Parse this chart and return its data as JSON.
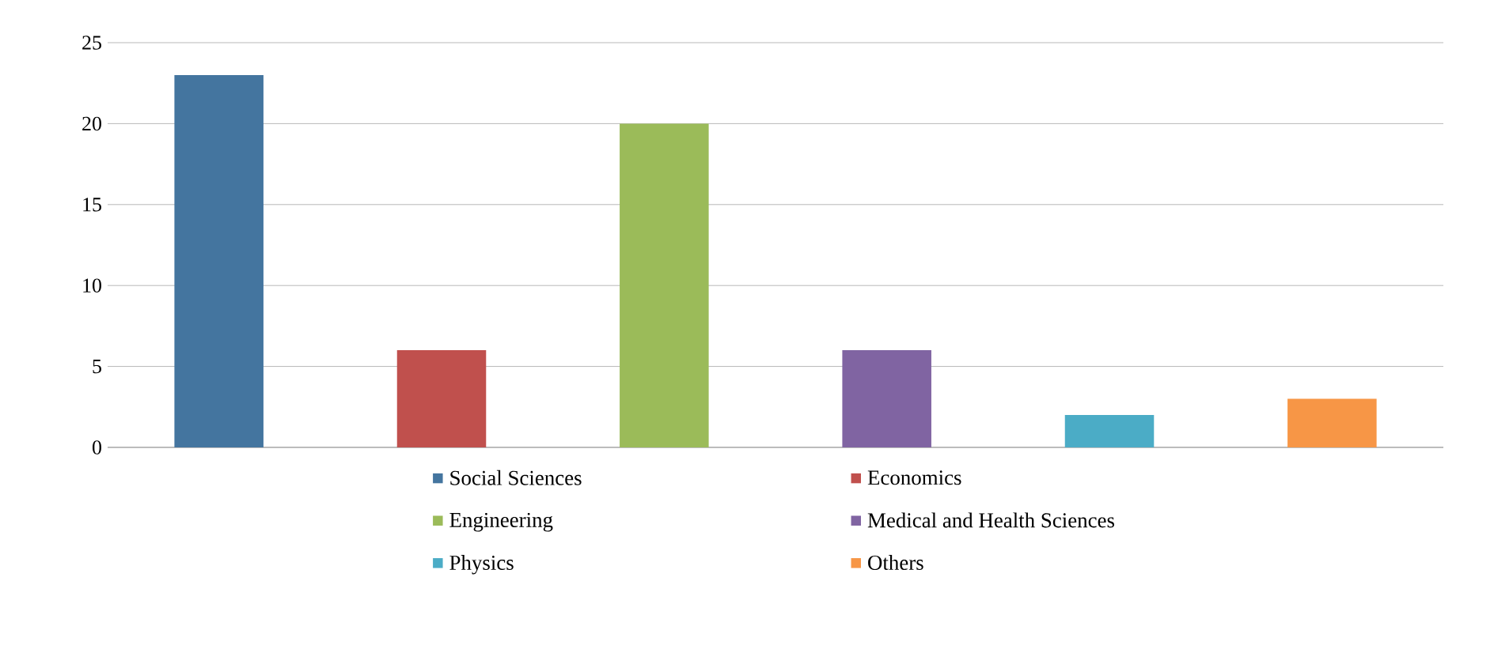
{
  "chart_data": {
    "type": "bar",
    "categories": [
      null,
      null,
      null,
      null,
      null,
      null
    ],
    "series": [
      {
        "name": "Social Sciences",
        "color": "#44759f",
        "values": [
          23,
          null,
          null,
          null,
          null,
          null
        ]
      },
      {
        "name": "Economics",
        "color": "#c0504d",
        "values": [
          null,
          6,
          null,
          null,
          null,
          null
        ]
      },
      {
        "name": "Engineering",
        "color": "#9bbb59",
        "values": [
          null,
          null,
          20,
          null,
          null,
          null
        ]
      },
      {
        "name": "Medical and Health Sciences",
        "color": "#8064a2",
        "values": [
          null,
          null,
          null,
          6,
          null,
          null
        ]
      },
      {
        "name": "Physics",
        "color": "#4bacc6",
        "values": [
          null,
          null,
          null,
          null,
          2,
          null
        ]
      },
      {
        "name": "Others",
        "color": "#f79646",
        "values": [
          null,
          null,
          null,
          null,
          null,
          3
        ]
      }
    ],
    "ylim": [
      0,
      25
    ],
    "yticks": [
      0,
      5,
      10,
      15,
      20,
      25
    ],
    "grid": "y",
    "legend": "bottom"
  }
}
